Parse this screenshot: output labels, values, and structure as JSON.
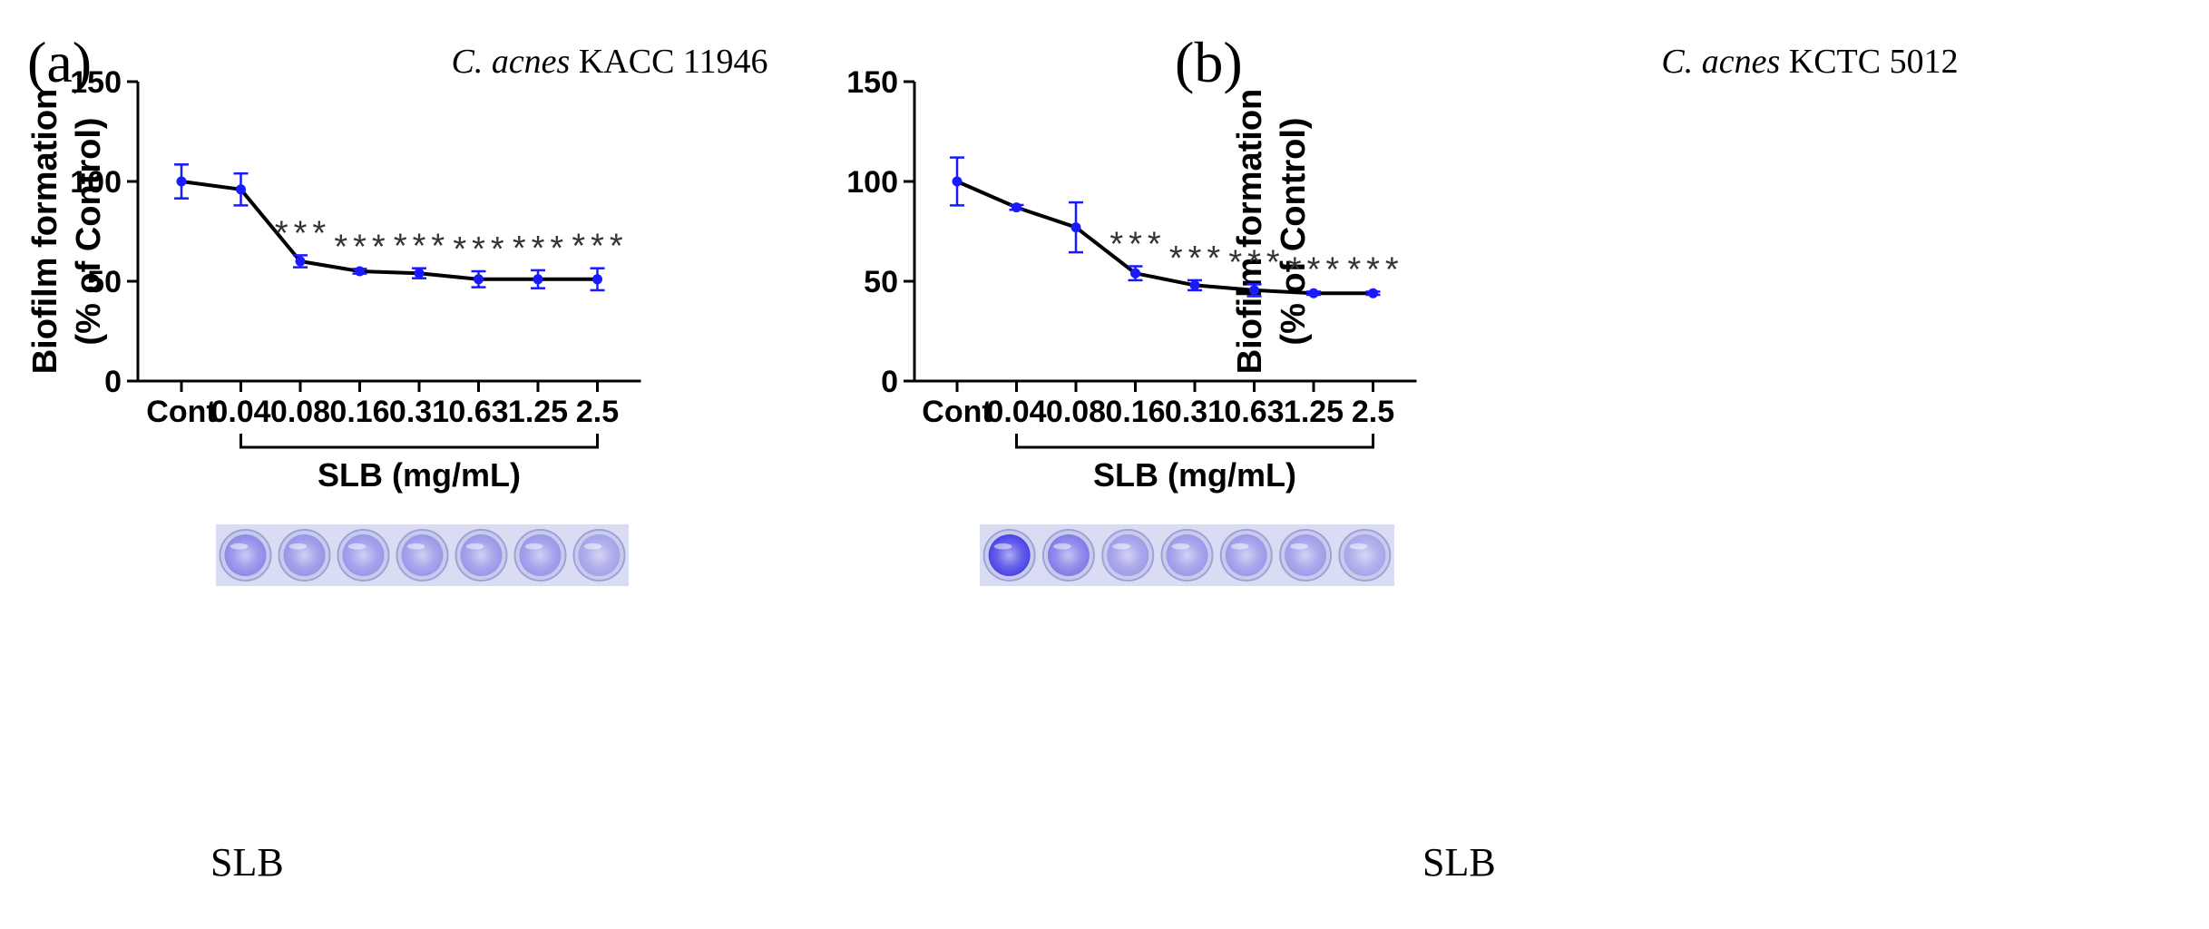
{
  "chart_data": [
    {
      "type": "line",
      "panel": "(a)",
      "title_italic": "C. acnes",
      "title_rest": " KACC 11946",
      "ylabel_line1": "Biofilm formation",
      "ylabel_line2": "(% of Control)",
      "ylim": [
        0,
        150
      ],
      "yticks": [
        "0",
        "50",
        "100",
        "150"
      ],
      "categories": [
        "Cont",
        "0.04",
        "0.08",
        "0.16",
        "0.31",
        "0.63",
        "1.25",
        "2.5"
      ],
      "values": [
        100,
        96,
        60,
        55,
        54,
        51,
        51,
        51
      ],
      "errors": [
        8.5,
        8,
        3,
        1.2,
        2.5,
        4,
        4.5,
        5.5
      ],
      "significance": [
        "",
        "",
        "***",
        "***",
        "***",
        "***",
        "***",
        "***"
      ],
      "bracket_label": "SLB (mg/mL)",
      "bracket_from": "0.04",
      "bracket_to": "2.5",
      "series_color": "#1a1aff",
      "line_color": "#000000",
      "strip_label": "SLB",
      "well_intensity": [
        0.45,
        0.38,
        0.36,
        0.36,
        0.36,
        0.36,
        0.28
      ]
    },
    {
      "type": "line",
      "panel": "(b)",
      "title_italic": "C. acnes",
      "title_rest": " KCTC 5012",
      "ylabel_line1": "Biofilm formation",
      "ylabel_line2": "(% of Control)",
      "ylim": [
        0,
        150
      ],
      "yticks": [
        "0",
        "50",
        "100",
        "150"
      ],
      "categories": [
        "Cont",
        "0.04",
        "0.08",
        "0.16",
        "0.31",
        "0.63",
        "1.25",
        "2.5"
      ],
      "values": [
        100,
        87,
        77,
        54,
        48,
        45.5,
        44,
        44
      ],
      "errors": [
        12,
        1.2,
        12.5,
        3.5,
        2.5,
        3,
        0.8,
        0.8
      ],
      "significance": [
        "",
        "",
        "",
        "***",
        "***",
        "***",
        "***",
        "***"
      ],
      "bracket_label": "SLB (mg/mL)",
      "bracket_from": "0.04",
      "bracket_to": "2.5",
      "series_color": "#1a1aff",
      "line_color": "#000000",
      "strip_label": "SLB",
      "well_intensity": [
        0.95,
        0.55,
        0.32,
        0.34,
        0.34,
        0.32,
        0.26
      ]
    }
  ]
}
